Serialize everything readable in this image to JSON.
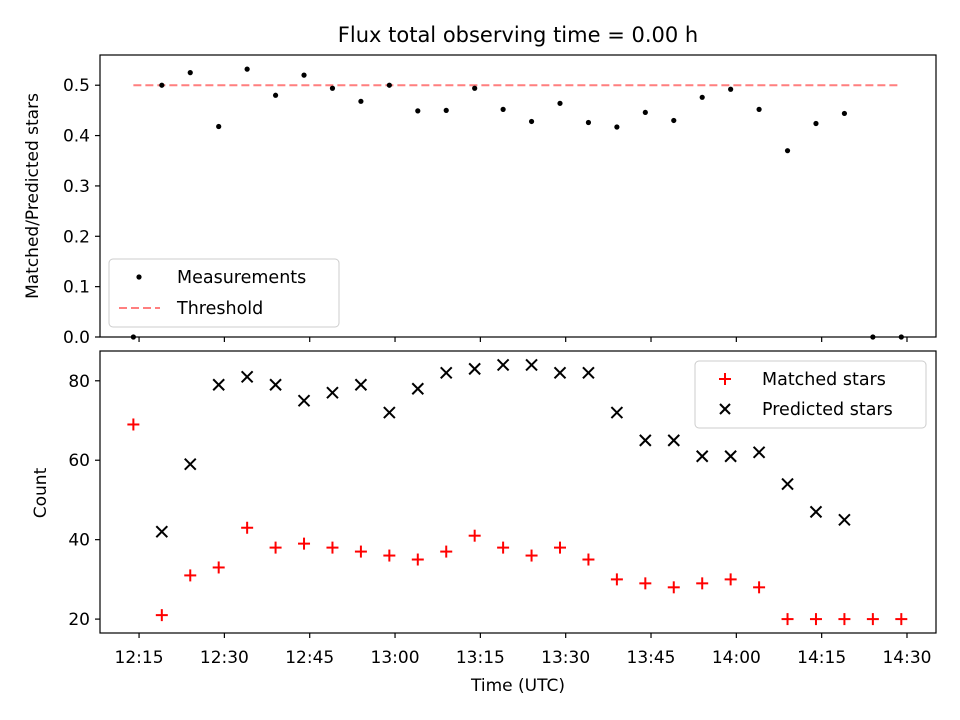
{
  "chart_data": [
    {
      "type": "scatter",
      "title": "Flux total observing time = 0.00 h",
      "xlabel": "",
      "ylabel": "Matched/Predicted stars",
      "ylim": [
        0.0,
        0.56
      ],
      "yticks": [
        "0.0",
        "0.1",
        "0.2",
        "0.3",
        "0.4",
        "0.5"
      ],
      "grid": false,
      "legend_position": "lower-left",
      "series": [
        {
          "name": "Measurements",
          "kind": "points",
          "color": "#000000",
          "x": [
            "12:14",
            "12:19",
            "12:24",
            "12:29",
            "12:34",
            "12:39",
            "12:44",
            "12:49",
            "12:54",
            "12:59",
            "13:04",
            "13:09",
            "13:14",
            "13:19",
            "13:24",
            "13:29",
            "13:34",
            "13:39",
            "13:44",
            "13:49",
            "13:54",
            "13:59",
            "14:04",
            "14:09",
            "14:14",
            "14:19",
            "14:24",
            "14:29"
          ],
          "y": [
            0.0,
            0.5,
            0.525,
            0.418,
            0.532,
            0.48,
            0.52,
            0.494,
            0.468,
            0.5,
            0.449,
            0.45,
            0.494,
            0.452,
            0.428,
            0.464,
            0.426,
            0.417,
            0.446,
            0.43,
            0.476,
            0.492,
            0.452,
            0.37,
            0.424,
            0.444,
            0.0,
            0.0
          ]
        },
        {
          "name": "Threshold",
          "kind": "dashed-line",
          "color": "#ff7f7f",
          "x": [
            "12:14",
            "14:29"
          ],
          "y": [
            0.5,
            0.5
          ]
        }
      ]
    },
    {
      "type": "scatter",
      "title": "",
      "xlabel": "Time (UTC)",
      "ylabel": "Count",
      "ylim": [
        16.5,
        87.5
      ],
      "yticks": [
        "20",
        "40",
        "60",
        "80"
      ],
      "xticks": [
        "12:15",
        "12:30",
        "12:45",
        "13:00",
        "13:15",
        "13:30",
        "13:45",
        "14:00",
        "14:15",
        "14:30"
      ],
      "grid": false,
      "legend_position": "upper-right",
      "series": [
        {
          "name": "Matched stars",
          "marker": "plus",
          "color": "#ff0000",
          "x": [
            "12:14",
            "12:19",
            "12:24",
            "12:29",
            "12:34",
            "12:39",
            "12:44",
            "12:49",
            "12:54",
            "12:59",
            "13:04",
            "13:09",
            "13:14",
            "13:19",
            "13:24",
            "13:29",
            "13:34",
            "13:39",
            "13:44",
            "13:49",
            "13:54",
            "13:59",
            "14:04",
            "14:09",
            "14:14",
            "14:19",
            "14:24",
            "14:29"
          ],
          "y": [
            69,
            21,
            31,
            33,
            43,
            38,
            39,
            38,
            37,
            36,
            35,
            37,
            41,
            38,
            36,
            38,
            35,
            30,
            29,
            28,
            29,
            30,
            28,
            20,
            20,
            20,
            20,
            20
          ]
        },
        {
          "name": "Predicted stars",
          "marker": "x",
          "color": "#000000",
          "x": [
            "12:19",
            "12:24",
            "12:29",
            "12:34",
            "12:39",
            "12:44",
            "12:49",
            "12:54",
            "12:59",
            "13:04",
            "13:09",
            "13:14",
            "13:19",
            "13:24",
            "13:29",
            "13:34",
            "13:39",
            "13:44",
            "13:49",
            "13:54",
            "13:59",
            "14:04",
            "14:09",
            "14:14",
            "14:19"
          ],
          "y": [
            42,
            59,
            79,
            81,
            79,
            75,
            77,
            79,
            72,
            78,
            82,
            83,
            84,
            84,
            82,
            82,
            72,
            65,
            65,
            61,
            61,
            62,
            54,
            47,
            45
          ]
        }
      ]
    }
  ]
}
